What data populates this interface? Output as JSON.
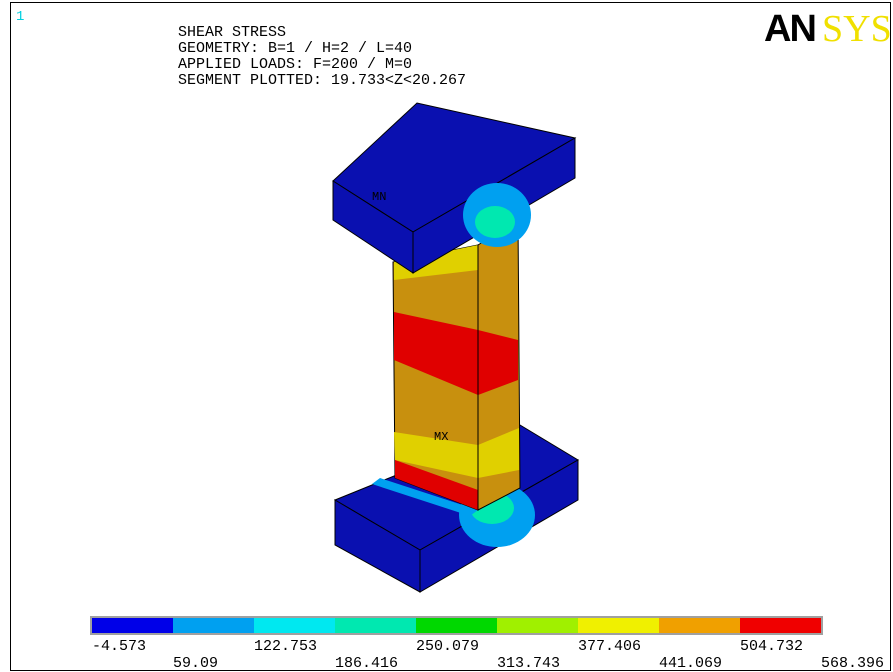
{
  "window_number": "1",
  "logo": {
    "primary": "AN",
    "secondary": "SYS"
  },
  "header": {
    "lines": [
      "SHEAR STRESS",
      "GEOMETRY: B=1 / H=2 / L=40",
      "APPLIED LOADS: F=200 / M=0",
      "SEGMENT PLOTTED: 19.733<Z<20.267"
    ]
  },
  "model": {
    "min_label": "MN",
    "max_label": "MX"
  },
  "legend": {
    "labels": [
      "-4.573",
      "59.09",
      "122.753",
      "186.416",
      "250.079",
      "313.743",
      "377.406",
      "441.069",
      "504.732",
      "568.396"
    ],
    "colors": [
      "#0000e8",
      "#00a0f0",
      "#00e8f0",
      "#00e8b0",
      "#00d800",
      "#a0f000",
      "#f0f000",
      "#f0a000",
      "#f00000"
    ]
  }
}
